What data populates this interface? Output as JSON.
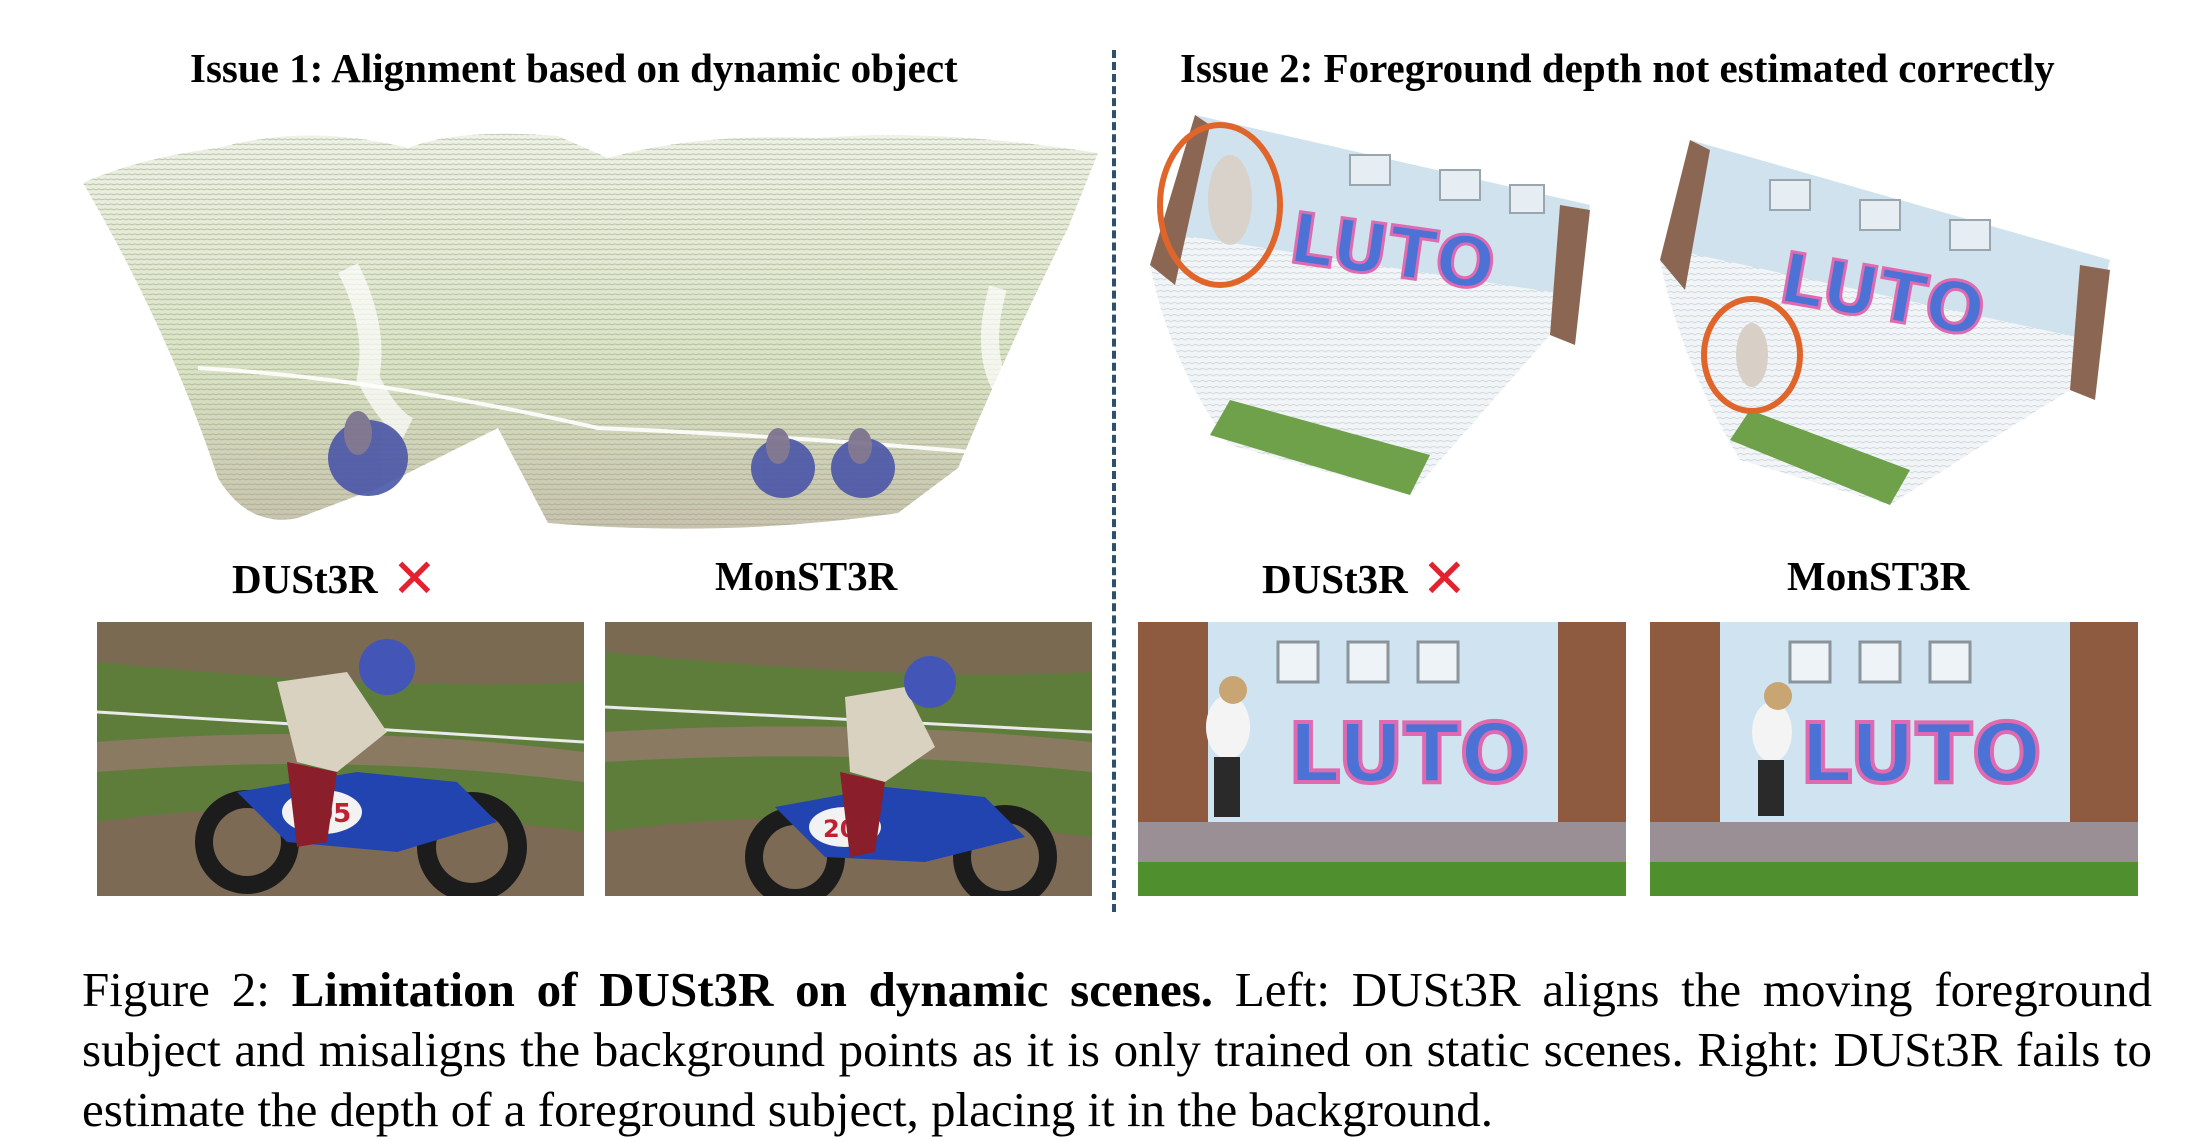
{
  "figure": {
    "issue1_title": "Issue 1: Alignment based on dynamic object",
    "issue2_title": "Issue 2: Foreground depth not estimated correctly",
    "panels": [
      {
        "method": "DUSt3R",
        "failure_mark": "✕"
      },
      {
        "method": "MonST3R",
        "failure_mark": ""
      },
      {
        "method": "DUSt3R",
        "failure_mark": "✕"
      },
      {
        "method": "MonST3R",
        "failure_mark": ""
      }
    ],
    "bike_number": "205",
    "graffiti_text": "LUTO",
    "colors": {
      "failure_mark": "#e0232e",
      "highlight_circle": "#e0652a",
      "divider": "#2f4f6f"
    }
  },
  "caption": {
    "label": "Figure 2:",
    "bold_title": "Limitation of DUSt3R on dynamic scenes.",
    "body": "Left: DUSt3R aligns the moving foreground subject and misaligns the background points as it is only trained on static scenes. Right: DUSt3R fails to estimate the depth of a foreground subject, placing it in the background."
  }
}
